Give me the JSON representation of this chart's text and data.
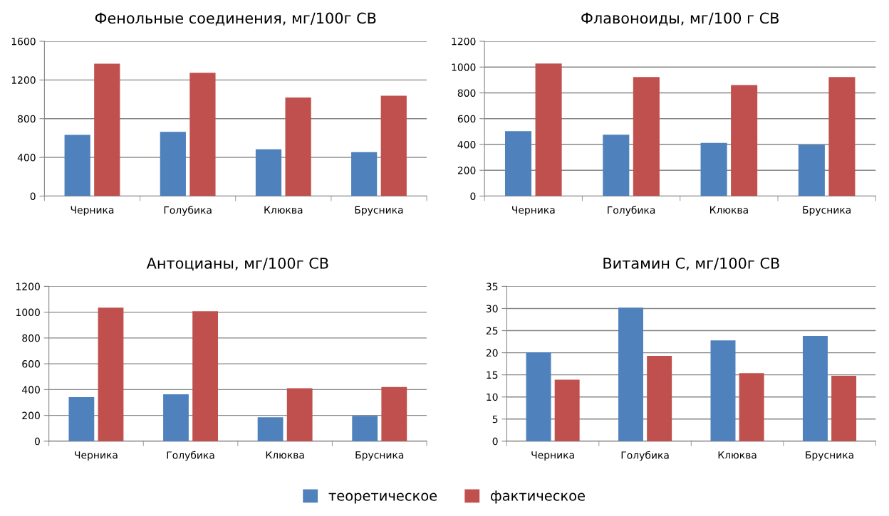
{
  "chart_data": [
    {
      "type": "bar",
      "title": "Фенольные соединения, мг/100г СВ",
      "categories": [
        "Черника",
        "Голубика",
        "Клюква",
        "Брусника"
      ],
      "ylim": [
        0,
        1600
      ],
      "yticks": [
        0,
        400,
        800,
        1200,
        1600
      ],
      "grid": "y",
      "legend": "bottom",
      "series": [
        {
          "name": "теоретическое",
          "color": "#4f81bd",
          "values": [
            632,
            663,
            483,
            454
          ]
        },
        {
          "name": "фактическое",
          "color": "#c0504d",
          "values": [
            1369,
            1275,
            1019,
            1038
          ]
        }
      ]
    },
    {
      "type": "bar",
      "title": "Флавоноиды, мг/100 г СВ",
      "categories": [
        "Черника",
        "Голубика",
        "Клюква",
        "Брусника"
      ],
      "ylim": [
        0,
        1200
      ],
      "yticks": [
        0,
        200,
        400,
        600,
        800,
        1000,
        1200
      ],
      "grid": "y",
      "series": [
        {
          "color": "#4f81bd",
          "values": [
            504,
            476,
            412,
            399
          ]
        },
        {
          "color": "#c0504d",
          "values": [
            1028,
            923,
            860,
            923
          ]
        }
      ]
    },
    {
      "type": "bar",
      "title": "Антоцианы, мг/100г СВ",
      "categories": [
        "Черника",
        "Голубика",
        "Клюква",
        "Брусника"
      ],
      "ylim": [
        0,
        1200
      ],
      "yticks": [
        0,
        200,
        400,
        600,
        800,
        1000,
        1200
      ],
      "grid": "y",
      "series": [
        {
          "color": "#4f81bd",
          "values": [
            341,
            363,
            185,
            196
          ]
        },
        {
          "color": "#c0504d",
          "values": [
            1035,
            1007,
            411,
            420
          ]
        }
      ]
    },
    {
      "type": "bar",
      "title": "Витамин С, мг/100г СВ",
      "categories": [
        "Черника",
        "Голубика",
        "Клюква",
        "Брусника"
      ],
      "ylim": [
        0,
        35
      ],
      "yticks": [
        0,
        5,
        10,
        15,
        20,
        25,
        30,
        35
      ],
      "grid": "y",
      "series": [
        {
          "color": "#4f81bd",
          "values": [
            20.1,
            30.2,
            22.8,
            23.8
          ]
        },
        {
          "color": "#c0504d",
          "values": [
            13.9,
            19.3,
            15.4,
            14.8
          ]
        }
      ]
    }
  ]
}
